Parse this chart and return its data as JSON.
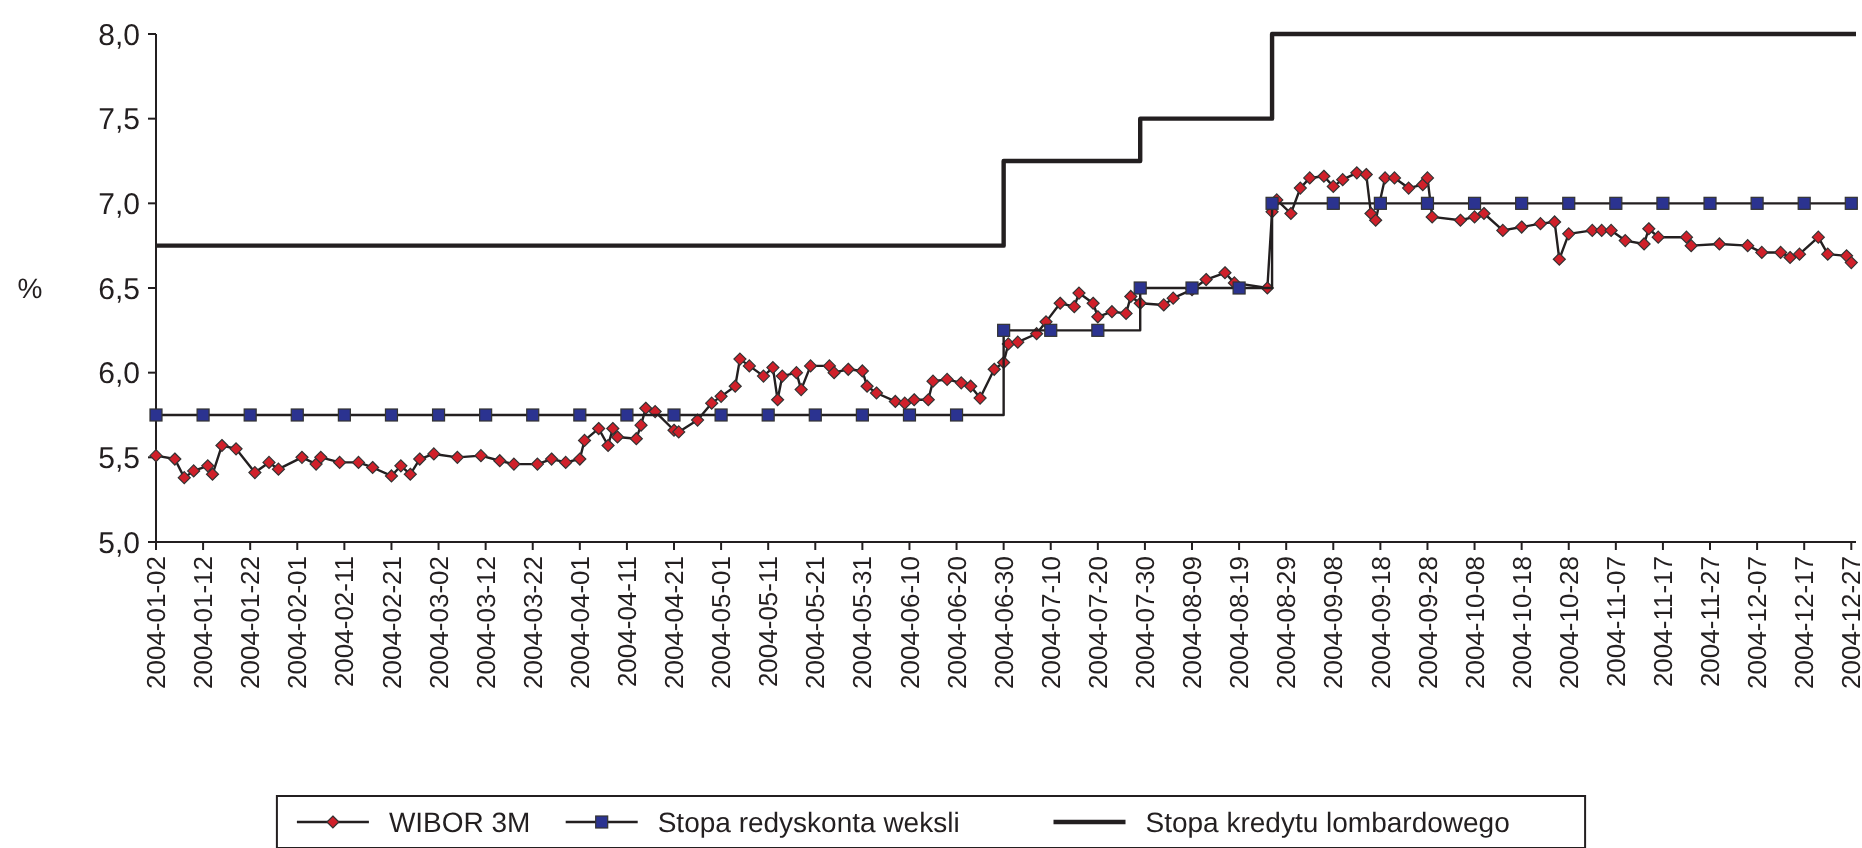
{
  "chart_data": {
    "type": "line",
    "ylabel": "%",
    "xlim": [
      "2004-01-02",
      "2004-12-28"
    ],
    "xticks": [
      "2004-01-02",
      "2004-01-12",
      "2004-01-22",
      "2004-02-01",
      "2004-02-11",
      "2004-02-21",
      "2004-03-02",
      "2004-03-12",
      "2004-03-22",
      "2004-04-01",
      "2004-04-11",
      "2004-04-21",
      "2004-05-01",
      "2004-05-11",
      "2004-05-21",
      "2004-05-31",
      "2004-06-10",
      "2004-06-20",
      "2004-06-30",
      "2004-07-10",
      "2004-07-20",
      "2004-07-30",
      "2004-08-09",
      "2004-08-19",
      "2004-08-29",
      "2004-09-08",
      "2004-09-18",
      "2004-09-28",
      "2004-10-08",
      "2004-10-18",
      "2004-10-28",
      "2004-11-07",
      "2004-11-17",
      "2004-11-27",
      "2004-12-07",
      "2004-12-17",
      "2004-12-27"
    ],
    "ylim": [
      5,
      8
    ],
    "yticks": [
      {
        "value": 5,
        "label": "5,0"
      },
      {
        "value": 5.5,
        "label": "5,5"
      },
      {
        "value": 6,
        "label": "6,0"
      },
      {
        "value": 6.5,
        "label": "6,5"
      },
      {
        "value": 7,
        "label": "7,0"
      },
      {
        "value": 7.5,
        "label": "7,5"
      },
      {
        "value": 8,
        "label": "8,0"
      }
    ],
    "legend": "bottom",
    "series": [
      {
        "name": "WIBOR 3M",
        "type": "line",
        "color": "#d0202a",
        "marker": "diamond",
        "x": [
          "2004-01-02",
          "2004-01-06",
          "2004-01-08",
          "2004-01-10",
          "2004-01-13",
          "2004-01-14",
          "2004-01-16",
          "2004-01-19",
          "2004-01-23",
          "2004-01-26",
          "2004-01-28",
          "2004-02-02",
          "2004-02-05",
          "2004-02-06",
          "2004-02-10",
          "2004-02-14",
          "2004-02-17",
          "2004-02-21",
          "2004-02-23",
          "2004-02-25",
          "2004-02-27",
          "2004-03-01",
          "2004-03-06",
          "2004-03-11",
          "2004-03-15",
          "2004-03-18",
          "2004-03-23",
          "2004-03-26",
          "2004-03-29",
          "2004-04-01",
          "2004-04-02",
          "2004-04-05",
          "2004-04-07",
          "2004-04-08",
          "2004-04-09",
          "2004-04-13",
          "2004-04-14",
          "2004-04-15",
          "2004-04-17",
          "2004-04-21",
          "2004-04-22",
          "2004-04-26",
          "2004-04-29",
          "2004-05-01",
          "2004-05-04",
          "2004-05-05",
          "2004-05-07",
          "2004-05-10",
          "2004-05-12",
          "2004-05-13",
          "2004-05-14",
          "2004-05-17",
          "2004-05-18",
          "2004-05-20",
          "2004-05-24",
          "2004-05-25",
          "2004-05-28",
          "2004-05-31",
          "2004-06-01",
          "2004-06-03",
          "2004-06-07",
          "2004-06-09",
          "2004-06-11",
          "2004-06-14",
          "2004-06-15",
          "2004-06-18",
          "2004-06-21",
          "2004-06-23",
          "2004-06-25",
          "2004-06-28",
          "2004-06-30",
          "2004-07-01",
          "2004-07-03",
          "2004-07-07",
          "2004-07-09",
          "2004-07-12",
          "2004-07-15",
          "2004-07-16",
          "2004-07-19",
          "2004-07-20",
          "2004-07-23",
          "2004-07-26",
          "2004-07-27",
          "2004-07-29",
          "2004-08-03",
          "2004-08-05",
          "2004-08-09",
          "2004-08-12",
          "2004-08-16",
          "2004-08-18",
          "2004-08-25",
          "2004-08-26",
          "2004-08-27",
          "2004-08-30",
          "2004-09-01",
          "2004-09-03",
          "2004-09-06",
          "2004-09-08",
          "2004-09-10",
          "2004-09-13",
          "2004-09-15",
          "2004-09-16",
          "2004-09-17",
          "2004-09-19",
          "2004-09-21",
          "2004-09-24",
          "2004-09-27",
          "2004-09-28",
          "2004-09-29",
          "2004-10-05",
          "2004-10-08",
          "2004-10-10",
          "2004-10-14",
          "2004-10-18",
          "2004-10-22",
          "2004-10-25",
          "2004-10-26",
          "2004-10-28",
          "2004-11-02",
          "2004-11-04",
          "2004-11-06",
          "2004-11-09",
          "2004-11-13",
          "2004-11-14",
          "2004-11-16",
          "2004-11-22",
          "2004-11-23",
          "2004-11-29",
          "2004-12-05",
          "2004-12-08",
          "2004-12-12",
          "2004-12-14",
          "2004-12-16",
          "2004-12-20",
          "2004-12-22",
          "2004-12-26",
          "2004-12-27"
        ],
        "values": [
          5.51,
          5.49,
          5.38,
          5.42,
          5.45,
          5.4,
          5.57,
          5.55,
          5.41,
          5.47,
          5.43,
          5.5,
          5.46,
          5.5,
          5.47,
          5.47,
          5.44,
          5.39,
          5.45,
          5.4,
          5.49,
          5.52,
          5.5,
          5.51,
          5.48,
          5.46,
          5.46,
          5.49,
          5.47,
          5.49,
          5.6,
          5.67,
          5.57,
          5.67,
          5.62,
          5.61,
          5.69,
          5.79,
          5.77,
          5.66,
          5.65,
          5.72,
          5.82,
          5.86,
          5.92,
          6.08,
          6.04,
          5.98,
          6.03,
          5.84,
          5.98,
          6.0,
          5.9,
          6.04,
          6.04,
          6.0,
          6.02,
          6.01,
          5.92,
          5.88,
          5.83,
          5.82,
          5.84,
          5.84,
          5.95,
          5.96,
          5.94,
          5.92,
          5.85,
          6.02,
          6.06,
          6.17,
          6.18,
          6.23,
          6.3,
          6.41,
          6.39,
          6.47,
          6.41,
          6.33,
          6.36,
          6.35,
          6.45,
          6.41,
          6.4,
          6.44,
          6.49,
          6.55,
          6.59,
          6.53,
          6.5,
          6.95,
          7.02,
          6.94,
          7.09,
          7.15,
          7.16,
          7.1,
          7.14,
          7.18,
          7.17,
          6.94,
          6.9,
          7.15,
          7.15,
          7.09,
          7.11,
          7.15,
          6.92,
          6.9,
          6.92,
          6.94,
          6.84,
          6.86,
          6.88,
          6.89,
          6.67,
          6.82,
          6.84,
          6.84,
          6.84,
          6.78,
          6.76,
          6.85,
          6.8,
          6.8,
          6.75,
          6.76,
          6.75,
          6.71,
          6.71,
          6.68,
          6.7,
          6.8,
          6.7,
          6.69,
          6.65
        ]
      },
      {
        "name": "Stopa redyskonta weksli",
        "type": "step",
        "color": "#2b3390",
        "marker": "square",
        "x": [
          "2004-01-02",
          "2004-01-12",
          "2004-01-22",
          "2004-02-01",
          "2004-02-11",
          "2004-02-21",
          "2004-03-02",
          "2004-03-12",
          "2004-03-22",
          "2004-04-01",
          "2004-04-11",
          "2004-04-21",
          "2004-05-01",
          "2004-05-11",
          "2004-05-21",
          "2004-05-31",
          "2004-06-10",
          "2004-06-20",
          "2004-06-30",
          "2004-07-10",
          "2004-07-20",
          "2004-07-29",
          "2004-08-09",
          "2004-08-19",
          "2004-08-26",
          "2004-09-08",
          "2004-09-18",
          "2004-09-28",
          "2004-10-08",
          "2004-10-18",
          "2004-10-28",
          "2004-11-07",
          "2004-11-17",
          "2004-11-27",
          "2004-12-07",
          "2004-12-17",
          "2004-12-27"
        ],
        "values": [
          5.75,
          5.75,
          5.75,
          5.75,
          5.75,
          5.75,
          5.75,
          5.75,
          5.75,
          5.75,
          5.75,
          5.75,
          5.75,
          5.75,
          5.75,
          5.75,
          5.75,
          5.75,
          6.25,
          6.25,
          6.25,
          6.5,
          6.5,
          6.5,
          7.0,
          7.0,
          7.0,
          7.0,
          7.0,
          7.0,
          7.0,
          7.0,
          7.0,
          7.0,
          7.0,
          7.0,
          7.0
        ]
      },
      {
        "name": "Stopa kredytu lombardowego",
        "type": "step",
        "color": "#231f20",
        "marker": "none",
        "x": [
          "2004-01-02",
          "2004-06-30",
          "2004-07-29",
          "2004-08-26",
          "2004-12-28"
        ],
        "values": [
          6.75,
          7.25,
          7.5,
          8.0,
          8.0
        ]
      }
    ]
  }
}
